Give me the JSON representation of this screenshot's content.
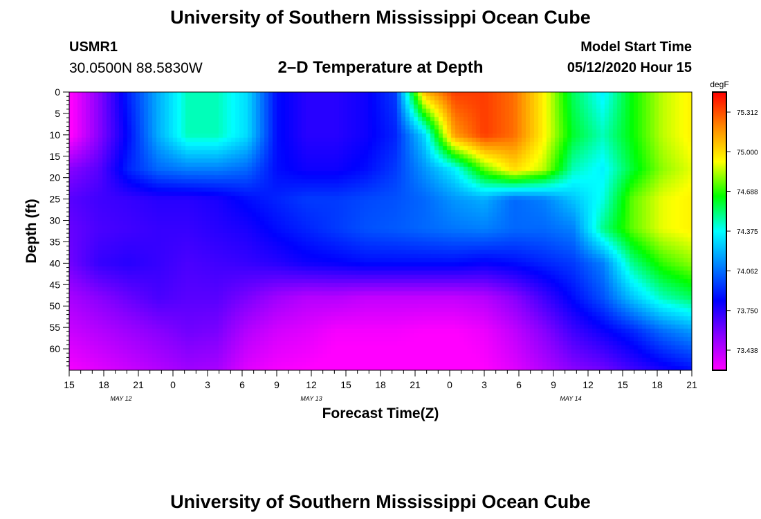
{
  "header": {
    "title": "University of Southern Mississippi Ocean Cube",
    "station": "USMR1",
    "coordinates": "30.0500N 88.5830W",
    "subtitle": "2–D Temperature at Depth",
    "model_label": "Model Start Time",
    "model_time": "05/12/2020 Hour 15"
  },
  "footer": {
    "title": "University of Southern Mississippi Ocean Cube"
  },
  "chart_data": {
    "type": "heatmap",
    "xlabel": "Forecast Time(Z)",
    "ylabel": "Depth (ft)",
    "ylim": [
      0,
      65
    ],
    "y_inverted": true,
    "y_ticks": [
      0,
      5,
      10,
      15,
      20,
      25,
      30,
      35,
      40,
      45,
      50,
      55,
      60
    ],
    "x_tick_labels": [
      "15",
      "18",
      "21",
      "0",
      "3",
      "6",
      "9",
      "12",
      "15",
      "18",
      "21",
      "0",
      "3",
      "6",
      "9",
      "12",
      "15",
      "18",
      "21"
    ],
    "x_range_hours": [
      0,
      54
    ],
    "date_labels": [
      {
        "label": "MAY 12",
        "hour": 4.5
      },
      {
        "label": "MAY 13",
        "hour": 21
      },
      {
        "label": "MAY 14",
        "hour": 43.5
      }
    ],
    "colorbar": {
      "unit": "degF",
      "min": 73.28,
      "max": 75.47,
      "labels": [
        "75.312",
        "75.000",
        "74.688",
        "74.375",
        "74.062",
        "73.750",
        "73.438"
      ]
    },
    "colors": {
      "scale": [
        "#ff00ff",
        "#8800ff",
        "#0000ff",
        "#0080ff",
        "#00ffff",
        "#00ff00",
        "#ffff00",
        "#ff8800",
        "#ff0000"
      ]
    },
    "grid": false,
    "series": [
      {
        "depth": 0,
        "values": [
          73.25,
          73.55,
          73.9,
          74.2,
          74.45,
          74.45,
          74.3,
          73.85,
          73.75,
          73.75,
          73.8,
          73.95,
          75.1,
          75.35,
          75.35,
          75.25,
          74.95,
          74.55,
          74.35,
          74.65,
          74.85,
          74.95
        ]
      },
      {
        "depth": 10,
        "values": [
          73.25,
          73.55,
          73.85,
          74.2,
          74.45,
          74.45,
          74.3,
          73.85,
          73.75,
          73.75,
          73.8,
          73.9,
          74.3,
          75.15,
          75.35,
          75.25,
          74.95,
          74.6,
          74.45,
          74.65,
          74.85,
          74.95
        ]
      },
      {
        "depth": 18,
        "values": [
          73.55,
          73.65,
          73.9,
          74.05,
          74.1,
          74.1,
          74.05,
          73.85,
          73.8,
          73.8,
          73.85,
          73.95,
          74.15,
          74.35,
          74.75,
          75.0,
          74.85,
          74.45,
          74.35,
          74.6,
          74.8,
          74.9
        ]
      },
      {
        "depth": 25,
        "values": [
          73.65,
          73.7,
          73.72,
          73.75,
          73.75,
          73.78,
          73.85,
          73.9,
          73.95,
          73.95,
          73.98,
          74.0,
          74.05,
          74.15,
          74.2,
          74.05,
          74.1,
          74.25,
          74.4,
          74.75,
          74.9,
          74.95
        ]
      },
      {
        "depth": 32,
        "values": [
          73.62,
          73.68,
          73.7,
          73.72,
          73.72,
          73.75,
          73.78,
          73.85,
          73.9,
          73.95,
          74.0,
          74.02,
          74.05,
          74.08,
          74.1,
          74.05,
          74.05,
          74.1,
          74.5,
          74.75,
          74.9,
          74.95
        ]
      },
      {
        "depth": 40,
        "values": [
          73.6,
          73.72,
          73.75,
          73.72,
          73.68,
          73.7,
          73.72,
          73.75,
          73.8,
          73.82,
          73.85,
          73.85,
          73.85,
          73.85,
          73.82,
          73.85,
          73.9,
          73.95,
          74.1,
          74.5,
          74.7,
          74.8
        ]
      },
      {
        "depth": 48,
        "values": [
          73.48,
          73.55,
          73.62,
          73.68,
          73.65,
          73.65,
          73.58,
          73.5,
          73.45,
          73.45,
          73.42,
          73.42,
          73.42,
          73.42,
          73.45,
          73.55,
          73.7,
          73.85,
          74.0,
          74.25,
          74.45,
          74.55
        ]
      },
      {
        "depth": 56,
        "values": [
          73.4,
          73.45,
          73.5,
          73.55,
          73.6,
          73.58,
          73.45,
          73.38,
          73.35,
          73.3,
          73.3,
          73.3,
          73.28,
          73.28,
          73.32,
          73.42,
          73.55,
          73.7,
          73.8,
          73.9,
          74.05,
          74.15
        ]
      },
      {
        "depth": 65,
        "values": [
          73.3,
          73.35,
          73.4,
          73.45,
          73.5,
          73.48,
          73.35,
          73.3,
          73.28,
          73.25,
          73.25,
          73.25,
          73.25,
          73.25,
          73.28,
          73.35,
          73.45,
          73.55,
          73.6,
          73.7,
          73.78,
          73.85
        ]
      }
    ]
  }
}
